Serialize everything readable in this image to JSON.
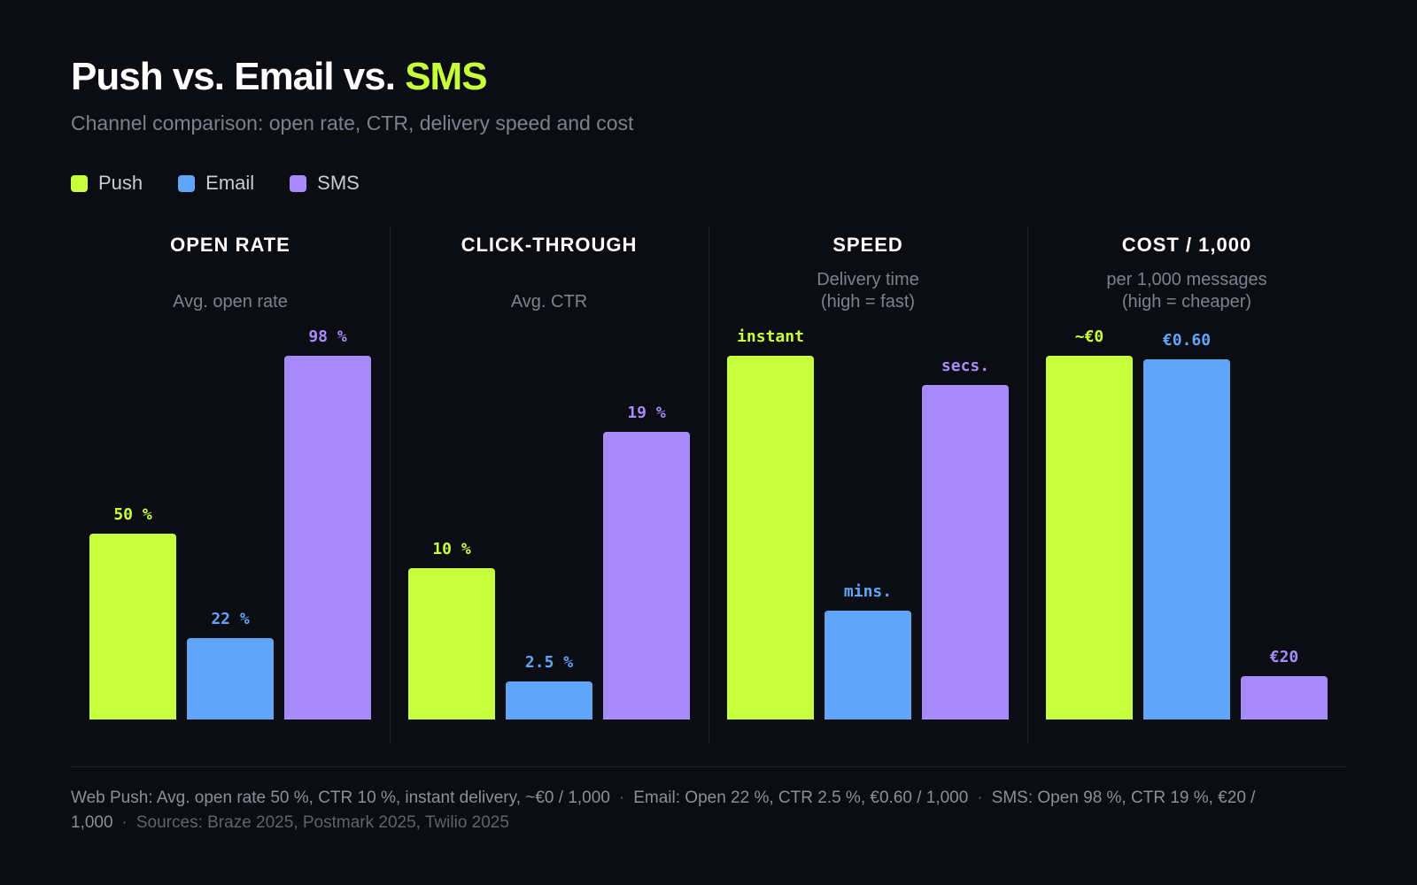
{
  "header": {
    "title_main": "Push vs. Email vs. ",
    "title_accent": "SMS",
    "subtitle": "Channel comparison: open rate, CTR, delivery speed and cost"
  },
  "legend": [
    {
      "label": "Push",
      "color": "#c8ff3c"
    },
    {
      "label": "Email",
      "color": "#60a5fa"
    },
    {
      "label": "SMS",
      "color": "#a78bfa"
    }
  ],
  "chart_data": [
    {
      "type": "bar",
      "title": "OPEN RATE",
      "subtitle": "Avg. open rate",
      "categories": [
        "Push",
        "Email",
        "SMS"
      ],
      "values": [
        50,
        22,
        98
      ],
      "labels": [
        "50 %",
        "22 %",
        "98 %"
      ],
      "ylim": [
        0,
        98
      ]
    },
    {
      "type": "bar",
      "title": "CLICK-THROUGH",
      "subtitle": "Avg. CTR",
      "categories": [
        "Push",
        "Email",
        "SMS"
      ],
      "values": [
        10,
        2.5,
        19
      ],
      "labels": [
        "10 %",
        "2.5 %",
        "19 %"
      ],
      "ylim": [
        0,
        24
      ]
    },
    {
      "type": "bar",
      "title": "SPEED",
      "subtitle": "Delivery time\n(high = fast)",
      "categories": [
        "Push",
        "Email",
        "SMS"
      ],
      "values": [
        100,
        30,
        92
      ],
      "labels": [
        "instant",
        "mins.",
        "secs."
      ],
      "ylim": [
        0,
        100
      ]
    },
    {
      "type": "bar",
      "title": "COST / 1,000",
      "subtitle": "per 1,000 messages\n(high = cheaper)",
      "categories": [
        "Push",
        "Email",
        "SMS"
      ],
      "values": [
        100,
        99,
        12
      ],
      "labels": [
        "~€0",
        "€0.60",
        "€20"
      ],
      "ylim": [
        0,
        100
      ]
    }
  ],
  "footer": {
    "push": "Web Push: Avg. open rate 50 %, CTR 10 %, instant delivery, ~€0 / 1,000",
    "email": "Email: Open 22 %, CTR 2.5 %, €0.60 / 1,000",
    "sms": "SMS: Open 98 %, CTR 19 %, €20 / 1,000",
    "sources": "Sources: Braze 2025, Postmark 2025, Twilio 2025",
    "separator": "·"
  }
}
